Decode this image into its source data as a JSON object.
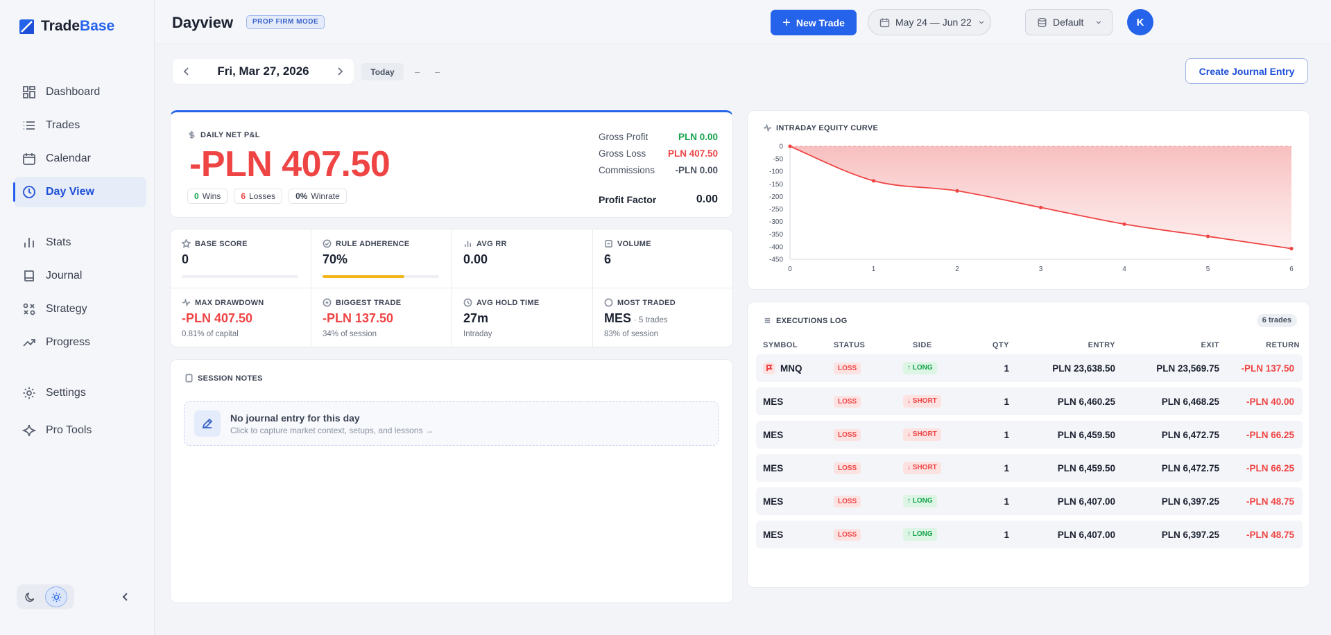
{
  "brand": {
    "name_a": "Trade",
    "name_b": "Base"
  },
  "sidebar": {
    "items": [
      {
        "label": "Dashboard",
        "icon": "dashboard-icon"
      },
      {
        "label": "Trades",
        "icon": "list-icon"
      },
      {
        "label": "Calendar",
        "icon": "calendar-icon"
      },
      {
        "label": "Day View",
        "icon": "clock-icon",
        "active": true
      },
      {
        "label": "Stats",
        "icon": "bar-chart-icon"
      },
      {
        "label": "Journal",
        "icon": "book-icon"
      },
      {
        "label": "Strategy",
        "icon": "strategy-icon"
      },
      {
        "label": "Progress",
        "icon": "trending-up-icon"
      },
      {
        "label": "Settings",
        "icon": "gear-icon"
      },
      {
        "label": "Pro Tools",
        "icon": "sparkle-icon"
      }
    ]
  },
  "header": {
    "title": "Dayview",
    "mode_badge": "PROP FIRM MODE",
    "new_trade_label": "New Trade",
    "date_range": "May 24 — Jun 22",
    "account": "Default",
    "avatar_initial": "K"
  },
  "date_nav": {
    "current": "Fri, Mar 27, 2026",
    "today_label": "Today",
    "dash1": "–",
    "dash2": "–"
  },
  "journal_button": "Create Journal Entry",
  "pnl": {
    "label": "DAILY NET P&L",
    "value": "-PLN 407.50",
    "wins": "0",
    "wins_label": "Wins",
    "losses": "6",
    "losses_label": "Losses",
    "winrate": "0%",
    "winrate_label": "Winrate",
    "gross_profit_label": "Gross Profit",
    "gross_profit": "PLN 0.00",
    "gross_loss_label": "Gross Loss",
    "gross_loss": "PLN 407.50",
    "commissions_label": "Commissions",
    "commissions": "-PLN 0.00",
    "profit_factor_label": "Profit Factor",
    "profit_factor": "0.00"
  },
  "metrics": {
    "base_score": {
      "label": "BASE SCORE",
      "value": "0",
      "fill": 0
    },
    "rule_adherence": {
      "label": "RULE ADHERENCE",
      "value": "70%",
      "fill": 0.7
    },
    "avg_rr": {
      "label": "AVG RR",
      "value": "0.00"
    },
    "volume": {
      "label": "VOLUME",
      "value": "6"
    },
    "max_drawdown": {
      "label": "MAX DRAWDOWN",
      "value": "-PLN 407.50",
      "sub": "0.81% of capital"
    },
    "biggest_trade": {
      "label": "BIGGEST TRADE",
      "value": "-PLN 137.50",
      "sub": "34% of session"
    },
    "avg_hold": {
      "label": "AVG HOLD TIME",
      "value": "27m",
      "sub": "Intraday"
    },
    "most_traded": {
      "label": "MOST TRADED",
      "value": "MES",
      "mini": "· 5 trades",
      "sub": "83% of session"
    }
  },
  "notes": {
    "label": "SESSION NOTES",
    "empty_title": "No journal entry for this day",
    "empty_sub": "Click to capture market context, setups, and lessons →"
  },
  "equity": {
    "label": "INTRADAY EQUITY CURVE"
  },
  "chart_data": {
    "type": "area",
    "title": "INTRADAY EQUITY CURVE",
    "x": [
      0,
      1,
      2,
      3,
      4,
      5,
      6
    ],
    "values": [
      0,
      -137.5,
      -177.5,
      -243.75,
      -310,
      -358.75,
      -407.5
    ],
    "xlim": [
      0,
      6
    ],
    "ylim": [
      -450,
      0
    ],
    "yticks": [
      0,
      -50,
      -100,
      -150,
      -200,
      -250,
      -300,
      -350,
      -400,
      -450
    ],
    "xticks": [
      0,
      1,
      2,
      3,
      4,
      5,
      6
    ],
    "color": "#ef4444",
    "grid": false,
    "legend": "none"
  },
  "exec": {
    "label": "EXECUTIONS LOG",
    "count": "6 trades",
    "headers": {
      "symbol": "SYMBOL",
      "status": "STATUS",
      "side": "SIDE",
      "qty": "QTY",
      "entry": "ENTRY",
      "exit": "EXIT",
      "return": "RETURN"
    },
    "rows": [
      {
        "symbol": "MNQ",
        "flag": true,
        "status": "LOSS",
        "side": "↑ LONG",
        "side_type": "long",
        "qty": "1",
        "entry": "PLN 23,638.50",
        "exit": "PLN 23,569.75",
        "ret": "-PLN 137.50"
      },
      {
        "symbol": "MES",
        "status": "LOSS",
        "side": "↓ SHORT",
        "side_type": "short",
        "qty": "1",
        "entry": "PLN 6,460.25",
        "exit": "PLN 6,468.25",
        "ret": "-PLN 40.00"
      },
      {
        "symbol": "MES",
        "status": "LOSS",
        "side": "↓ SHORT",
        "side_type": "short",
        "qty": "1",
        "entry": "PLN 6,459.50",
        "exit": "PLN 6,472.75",
        "ret": "-PLN 66.25"
      },
      {
        "symbol": "MES",
        "status": "LOSS",
        "side": "↓ SHORT",
        "side_type": "short",
        "qty": "1",
        "entry": "PLN 6,459.50",
        "exit": "PLN 6,472.75",
        "ret": "-PLN 66.25"
      },
      {
        "symbol": "MES",
        "status": "LOSS",
        "side": "↑ LONG",
        "side_type": "long",
        "qty": "1",
        "entry": "PLN 6,407.00",
        "exit": "PLN 6,397.25",
        "ret": "-PLN 48.75"
      },
      {
        "symbol": "MES",
        "status": "LOSS",
        "side": "↑ LONG",
        "side_type": "long",
        "qty": "1",
        "entry": "PLN 6,407.00",
        "exit": "PLN 6,397.25",
        "ret": "-PLN 48.75"
      }
    ]
  }
}
